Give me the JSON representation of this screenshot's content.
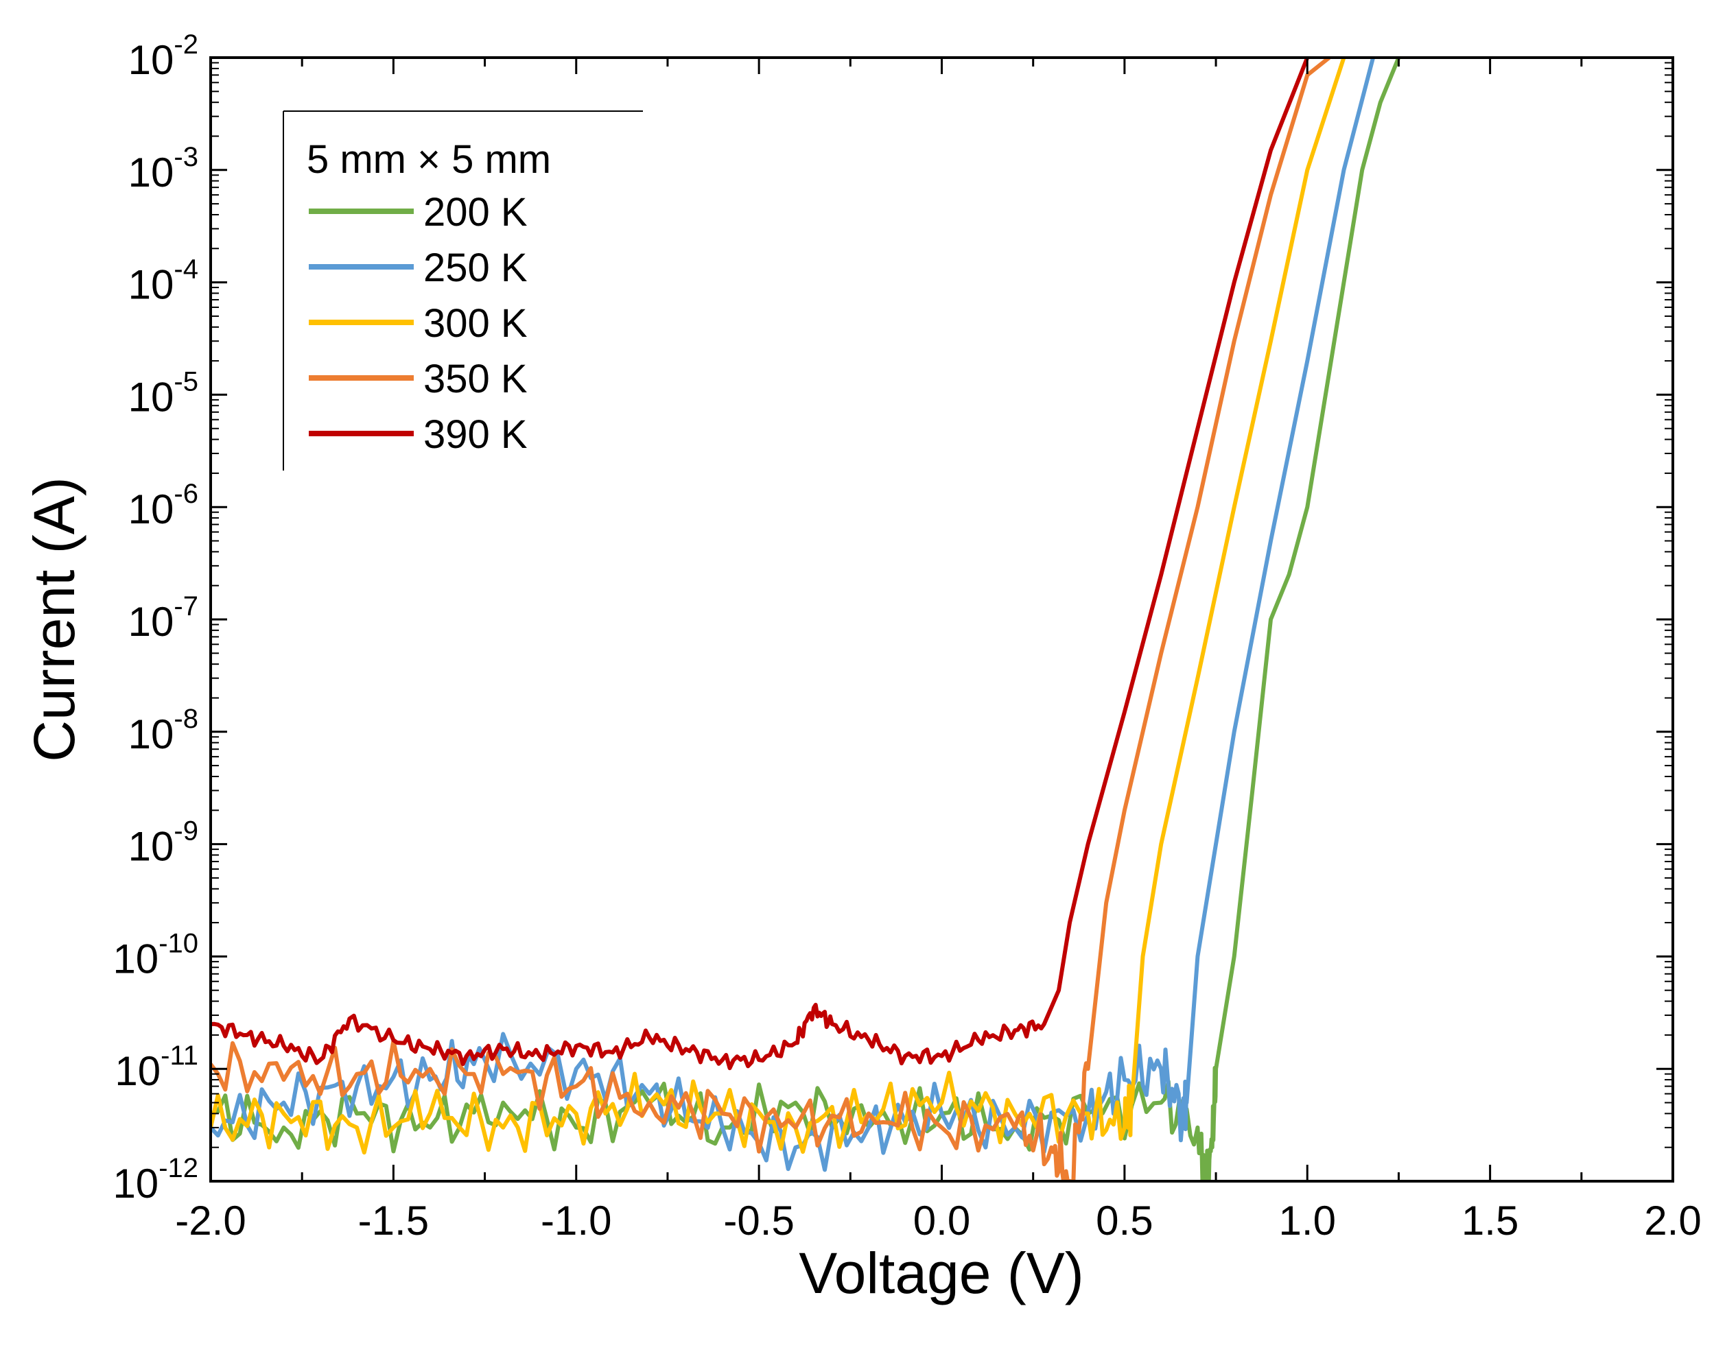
{
  "chart_data": {
    "type": "line",
    "xlabel": "Voltage (V)",
    "ylabel": "Current (A)",
    "xlim": [
      -2.0,
      2.0
    ],
    "ylim": [
      1e-12,
      0.01
    ],
    "yscale": "log",
    "x_ticks": [
      -2.0,
      -1.5,
      -1.0,
      -0.5,
      0.0,
      0.5,
      1.0,
      1.5,
      2.0
    ],
    "x_tick_labels": [
      "-2.0",
      "-1.5",
      "-1.0",
      "-0.5",
      "0.0",
      "0.5",
      "1.0",
      "1.5",
      "2.0"
    ],
    "y_tick_exponents": [
      -12,
      -11,
      -10,
      -9,
      -8,
      -7,
      -6,
      -5,
      -4,
      -3,
      -2
    ],
    "y_tick_base": "10",
    "grid": false,
    "legend": {
      "title": "5 mm × 5 mm",
      "placement": "top-left"
    },
    "series": [
      {
        "name": "200 K",
        "color": "#70ad47",
        "points": [
          [
            -2.0,
            4e-12
          ],
          [
            -1.8,
            3e-12
          ],
          [
            -1.6,
            4e-12
          ],
          [
            -1.4,
            3e-12
          ],
          [
            -1.2,
            5e-12
          ],
          [
            -1.0,
            3e-12
          ],
          [
            -0.8,
            5e-12
          ],
          [
            -0.6,
            3e-12
          ],
          [
            -0.4,
            5e-12
          ],
          [
            -0.2,
            3e-12
          ],
          [
            0.0,
            4e-12
          ],
          [
            0.2,
            3e-12
          ],
          [
            0.4,
            4e-12
          ],
          [
            0.6,
            5e-12
          ],
          [
            0.7,
            3e-12
          ],
          [
            0.72,
            1e-12
          ],
          [
            0.74,
            2e-12
          ],
          [
            0.75,
            1e-11
          ],
          [
            0.8,
            1e-10
          ],
          [
            0.85,
            3e-09
          ],
          [
            0.9,
            1e-07
          ],
          [
            0.95,
            2.5e-07
          ],
          [
            1.0,
            1e-06
          ],
          [
            1.05,
            1e-05
          ],
          [
            1.1,
            0.0001
          ],
          [
            1.15,
            0.001
          ],
          [
            1.2,
            0.004
          ],
          [
            1.25,
            0.01
          ]
        ]
      },
      {
        "name": "250 K",
        "color": "#5b9bd5",
        "points": [
          [
            -2.0,
            3e-12
          ],
          [
            -1.8,
            5e-12
          ],
          [
            -1.6,
            7e-12
          ],
          [
            -1.4,
            8e-12
          ],
          [
            -1.25,
            1.2e-11
          ],
          [
            -1.0,
            1e-11
          ],
          [
            -0.8,
            6e-12
          ],
          [
            -0.6,
            3e-12
          ],
          [
            -0.4,
            2e-12
          ],
          [
            -0.2,
            3e-12
          ],
          [
            0.0,
            4e-12
          ],
          [
            0.2,
            3e-12
          ],
          [
            0.4,
            4e-12
          ],
          [
            0.5,
            8e-12
          ],
          [
            0.6,
            1e-11
          ],
          [
            0.66,
            4e-12
          ],
          [
            0.67,
            5e-12
          ],
          [
            0.7,
            1e-10
          ],
          [
            0.8,
            1e-08
          ],
          [
            0.9,
            5e-07
          ],
          [
            1.0,
            2e-05
          ],
          [
            1.1,
            0.001
          ],
          [
            1.18,
            0.01
          ]
        ]
      },
      {
        "name": "300 K",
        "color": "#ffc000",
        "points": [
          [
            -2.0,
            3e-12
          ],
          [
            -1.8,
            4e-12
          ],
          [
            -1.6,
            3e-12
          ],
          [
            -1.4,
            4e-12
          ],
          [
            -1.2,
            3e-12
          ],
          [
            -1.0,
            4e-12
          ],
          [
            -0.8,
            5e-12
          ],
          [
            -0.6,
            4e-12
          ],
          [
            -0.4,
            3e-12
          ],
          [
            -0.2,
            4e-12
          ],
          [
            0.0,
            5e-12
          ],
          [
            0.2,
            4e-12
          ],
          [
            0.4,
            4e-12
          ],
          [
            0.5,
            3e-12
          ],
          [
            0.52,
            5e-12
          ],
          [
            0.55,
            1e-10
          ],
          [
            0.6,
            1e-09
          ],
          [
            0.7,
            3e-08
          ],
          [
            0.8,
            1e-06
          ],
          [
            0.9,
            3e-05
          ],
          [
            1.0,
            0.001
          ],
          [
            1.1,
            0.01
          ]
        ]
      },
      {
        "name": "350 K",
        "color": "#ed7d31",
        "points": [
          [
            -2.0,
            1.1e-11
          ],
          [
            -1.8,
            8e-12
          ],
          [
            -1.6,
            9e-12
          ],
          [
            -1.4,
            1e-11
          ],
          [
            -1.2,
            9e-12
          ],
          [
            -1.0,
            7e-12
          ],
          [
            -0.8,
            5e-12
          ],
          [
            -0.6,
            4e-12
          ],
          [
            -0.4,
            3e-12
          ],
          [
            -0.2,
            4e-12
          ],
          [
            0.0,
            3e-12
          ],
          [
            0.2,
            3e-12
          ],
          [
            0.3,
            2e-12
          ],
          [
            0.35,
            1e-12
          ],
          [
            0.4,
            1e-11
          ],
          [
            0.45,
            3e-10
          ],
          [
            0.5,
            2e-09
          ],
          [
            0.6,
            5e-08
          ],
          [
            0.7,
            1e-06
          ],
          [
            0.8,
            3e-05
          ],
          [
            0.9,
            0.0006
          ],
          [
            1.0,
            0.007
          ],
          [
            1.06,
            0.01
          ]
        ]
      },
      {
        "name": "390 K",
        "color": "#c00000",
        "points": [
          [
            -2.0,
            2.5e-11
          ],
          [
            -1.9,
            2e-11
          ],
          [
            -1.8,
            1.6e-11
          ],
          [
            -1.7,
            1.2e-11
          ],
          [
            -1.62,
            2.8e-11
          ],
          [
            -1.5,
            1.8e-11
          ],
          [
            -1.4,
            1.5e-11
          ],
          [
            -1.3,
            1.3e-11
          ],
          [
            -1.2,
            1.5e-11
          ],
          [
            -1.1,
            1.3e-11
          ],
          [
            -1.0,
            1.6e-11
          ],
          [
            -0.9,
            1.4e-11
          ],
          [
            -0.8,
            1.9e-11
          ],
          [
            -0.7,
            1.5e-11
          ],
          [
            -0.6,
            1.2e-11
          ],
          [
            -0.5,
            1.2e-11
          ],
          [
            -0.4,
            1.7e-11
          ],
          [
            -0.35,
            3.5e-11
          ],
          [
            -0.3,
            2.5e-11
          ],
          [
            -0.2,
            1.8e-11
          ],
          [
            -0.1,
            1.3e-11
          ],
          [
            0.0,
            1.3e-11
          ],
          [
            0.1,
            1.8e-11
          ],
          [
            0.2,
            2.2e-11
          ],
          [
            0.28,
            2.5e-11
          ],
          [
            0.32,
            5e-11
          ],
          [
            0.35,
            2e-10
          ],
          [
            0.4,
            1e-09
          ],
          [
            0.5,
            1.5e-08
          ],
          [
            0.6,
            2.5e-07
          ],
          [
            0.7,
            5e-06
          ],
          [
            0.8,
            0.0001
          ],
          [
            0.9,
            0.0015
          ],
          [
            1.0,
            0.01
          ]
        ]
      }
    ]
  }
}
